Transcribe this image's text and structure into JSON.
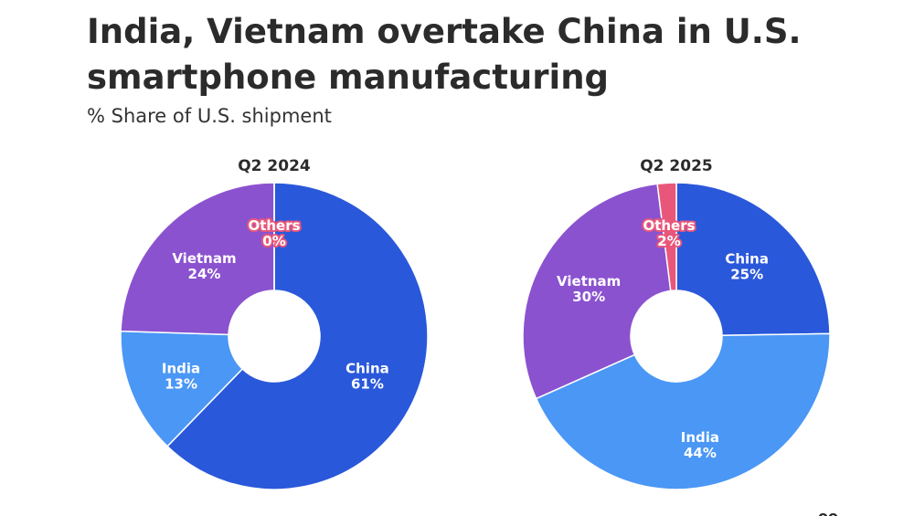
{
  "title": "India, Vietnam overtake China in U.S. smartphone manufacturing",
  "subtitle": "% Share of U.S. shipment",
  "corner_mark": "oo",
  "colors": {
    "China": "#2a58da",
    "India": "#4a97f5",
    "Vietnam": "#8b52cf",
    "Others": "#e8577a"
  },
  "chart_data": [
    {
      "type": "pie",
      "title": "Q2 2024",
      "donut": true,
      "start": "12 o'clock, clockwise",
      "slices": [
        {
          "label": "China",
          "value": 61,
          "value_label": "61%"
        },
        {
          "label": "India",
          "value": 13,
          "value_label": "13%"
        },
        {
          "label": "Vietnam",
          "value": 24,
          "value_label": "24%"
        },
        {
          "label": "Others",
          "value": 0,
          "value_label": "0%"
        }
      ]
    },
    {
      "type": "pie",
      "title": "Q2 2025",
      "donut": true,
      "start": "12 o'clock, clockwise",
      "slices": [
        {
          "label": "China",
          "value": 25,
          "value_label": "25%"
        },
        {
          "label": "India",
          "value": 44,
          "value_label": "44%"
        },
        {
          "label": "Vietnam",
          "value": 30,
          "value_label": "30%"
        },
        {
          "label": "Others",
          "value": 2,
          "value_label": "2%"
        }
      ]
    }
  ]
}
